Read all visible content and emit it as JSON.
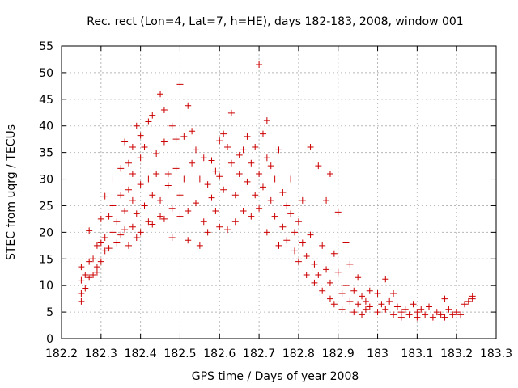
{
  "chart_data": {
    "type": "scatter",
    "title": "Rec. rect (Lon=4, Lat=7, h=HE), days 182-183, 2008, window 001",
    "xlabel": "GPS time / Days of year 2008",
    "ylabel": "STEC from uqrg / TECUs",
    "xlim": [
      182.2,
      183.3
    ],
    "ylim": [
      0,
      55
    ],
    "x_ticks": [
      182.2,
      182.3,
      182.4,
      182.5,
      182.6,
      182.7,
      182.8,
      182.9,
      183.0,
      183.1,
      183.2,
      183.3
    ],
    "x_tick_labels": [
      "182.2",
      "182.3",
      "182.4",
      "182.5",
      "182.6",
      "182.7",
      "182.8",
      "182.9",
      "183",
      "183.1",
      "183.2",
      "183.3"
    ],
    "y_ticks": [
      0,
      5,
      10,
      15,
      20,
      25,
      30,
      35,
      40,
      45,
      50,
      55
    ],
    "y_tick_labels": [
      "0",
      "5",
      "10",
      "15",
      "20",
      "25",
      "30",
      "35",
      "40",
      "45",
      "50",
      "55"
    ],
    "grid": true,
    "marker": "+",
    "color": "#cc0000",
    "series": [
      {
        "points": [
          [
            182.25,
            8.5
          ],
          [
            182.25,
            11
          ],
          [
            182.25,
            13.5
          ],
          [
            182.25,
            7
          ],
          [
            182.26,
            12
          ],
          [
            182.26,
            9.5
          ],
          [
            182.27,
            14.5
          ],
          [
            182.27,
            11.5
          ],
          [
            182.27,
            20.3
          ],
          [
            182.28,
            12
          ],
          [
            182.28,
            15
          ],
          [
            182.29,
            13.5
          ],
          [
            182.29,
            17.5
          ],
          [
            182.29,
            12.5
          ],
          [
            182.3,
            18
          ],
          [
            182.3,
            22.5
          ],
          [
            182.3,
            14.5
          ],
          [
            182.31,
            16.5
          ],
          [
            182.31,
            26.8
          ],
          [
            182.31,
            19
          ],
          [
            182.32,
            23
          ],
          [
            182.32,
            17
          ],
          [
            182.33,
            20
          ],
          [
            182.33,
            25
          ],
          [
            182.33,
            30
          ],
          [
            182.34,
            18
          ],
          [
            182.34,
            22
          ],
          [
            182.35,
            27
          ],
          [
            182.35,
            32
          ],
          [
            182.35,
            19.5
          ],
          [
            182.36,
            24
          ],
          [
            182.36,
            37
          ],
          [
            182.36,
            20.5
          ],
          [
            182.37,
            28
          ],
          [
            182.37,
            33
          ],
          [
            182.37,
            17.5
          ],
          [
            182.38,
            21
          ],
          [
            182.38,
            26
          ],
          [
            182.38,
            31
          ],
          [
            182.38,
            36
          ],
          [
            182.39,
            40
          ],
          [
            182.39,
            19
          ],
          [
            182.39,
            23.5
          ],
          [
            182.4,
            29
          ],
          [
            182.4,
            34
          ],
          [
            182.4,
            38.2
          ],
          [
            182.4,
            20
          ],
          [
            182.41,
            25
          ],
          [
            182.41,
            36
          ],
          [
            182.42,
            40.8
          ],
          [
            182.42,
            22
          ],
          [
            182.42,
            30
          ],
          [
            182.43,
            42
          ],
          [
            182.43,
            21.5
          ],
          [
            182.43,
            27
          ],
          [
            182.44,
            34.8
          ],
          [
            182.44,
            31
          ],
          [
            182.45,
            46
          ],
          [
            182.45,
            23
          ],
          [
            182.45,
            26
          ],
          [
            182.46,
            37
          ],
          [
            182.46,
            43
          ],
          [
            182.46,
            22.5
          ],
          [
            182.47,
            31
          ],
          [
            182.47,
            28.8
          ],
          [
            182.48,
            40
          ],
          [
            182.48,
            19
          ],
          [
            182.48,
            24.5
          ],
          [
            182.49,
            32
          ],
          [
            182.49,
            37.5
          ],
          [
            182.5,
            47.8
          ],
          [
            182.5,
            23
          ],
          [
            182.5,
            27
          ],
          [
            182.51,
            38
          ],
          [
            182.51,
            30
          ],
          [
            182.52,
            43.8
          ],
          [
            182.52,
            18.5
          ],
          [
            182.52,
            24
          ],
          [
            182.53,
            33
          ],
          [
            182.53,
            39
          ],
          [
            182.54,
            25.5
          ],
          [
            182.54,
            35.5
          ],
          [
            182.55,
            17.5
          ],
          [
            182.55,
            30
          ],
          [
            182.56,
            34
          ],
          [
            182.56,
            22
          ],
          [
            182.57,
            29
          ],
          [
            182.57,
            20
          ],
          [
            182.58,
            26.5
          ],
          [
            182.58,
            33.5
          ],
          [
            182.59,
            31.5
          ],
          [
            182.59,
            24
          ],
          [
            182.6,
            37.2
          ],
          [
            182.6,
            21
          ],
          [
            182.6,
            30.5
          ],
          [
            182.61,
            38.5
          ],
          [
            182.61,
            28
          ],
          [
            182.62,
            36
          ],
          [
            182.62,
            20.5
          ],
          [
            182.63,
            42.4
          ],
          [
            182.63,
            33
          ],
          [
            182.64,
            27
          ],
          [
            182.64,
            22
          ],
          [
            182.65,
            34.5
          ],
          [
            182.65,
            31
          ],
          [
            182.66,
            35.5
          ],
          [
            182.66,
            24
          ],
          [
            182.67,
            29.5
          ],
          [
            182.67,
            38
          ],
          [
            182.68,
            33
          ],
          [
            182.68,
            23
          ],
          [
            182.69,
            27
          ],
          [
            182.69,
            36
          ],
          [
            182.7,
            51.5
          ],
          [
            182.7,
            31
          ],
          [
            182.7,
            24.5
          ],
          [
            182.71,
            38.5
          ],
          [
            182.71,
            28.5
          ],
          [
            182.72,
            41
          ],
          [
            182.72,
            34
          ],
          [
            182.72,
            20
          ],
          [
            182.73,
            26
          ],
          [
            182.73,
            32.5
          ],
          [
            182.74,
            23
          ],
          [
            182.74,
            30
          ],
          [
            182.75,
            35.5
          ],
          [
            182.75,
            17.5
          ],
          [
            182.76,
            21
          ],
          [
            182.76,
            27.5
          ],
          [
            182.77,
            25
          ],
          [
            182.77,
            18.5
          ],
          [
            182.78,
            23.5
          ],
          [
            182.78,
            30
          ],
          [
            182.79,
            20
          ],
          [
            182.79,
            16.5
          ],
          [
            182.8,
            22
          ],
          [
            182.8,
            14.5
          ],
          [
            182.81,
            26
          ],
          [
            182.81,
            18
          ],
          [
            182.82,
            12
          ],
          [
            182.82,
            15.5
          ],
          [
            182.83,
            36
          ],
          [
            182.83,
            19.5
          ],
          [
            182.84,
            10.5
          ],
          [
            182.84,
            14
          ],
          [
            182.85,
            32.5
          ],
          [
            182.85,
            12
          ],
          [
            182.86,
            17.5
          ],
          [
            182.86,
            9
          ],
          [
            182.87,
            26
          ],
          [
            182.87,
            13
          ],
          [
            182.88,
            31
          ],
          [
            182.88,
            7.5
          ],
          [
            182.88,
            10.5
          ],
          [
            182.89,
            16
          ],
          [
            182.89,
            6.5
          ],
          [
            182.9,
            12.5
          ],
          [
            182.9,
            23.8
          ],
          [
            182.91,
            8.5
          ],
          [
            182.91,
            5.5
          ],
          [
            182.92,
            18
          ],
          [
            182.92,
            10
          ],
          [
            182.93,
            7
          ],
          [
            182.93,
            14
          ],
          [
            182.94,
            5
          ],
          [
            182.94,
            9
          ],
          [
            182.95,
            11.5
          ],
          [
            182.95,
            6.5
          ],
          [
            182.96,
            8
          ],
          [
            182.96,
            4.5
          ],
          [
            182.97,
            7
          ],
          [
            182.97,
            5.5
          ],
          [
            182.98,
            9
          ],
          [
            182.98,
            6
          ],
          [
            183.0,
            8.5
          ],
          [
            183.0,
            5
          ],
          [
            183.01,
            6.5
          ],
          [
            183.02,
            11.2
          ],
          [
            183.02,
            5.5
          ],
          [
            183.03,
            7
          ],
          [
            183.04,
            4.5
          ],
          [
            183.04,
            8.5
          ],
          [
            183.05,
            6
          ],
          [
            183.06,
            5
          ],
          [
            183.06,
            4
          ],
          [
            183.07,
            5.5
          ],
          [
            183.08,
            4.5
          ],
          [
            183.09,
            6.5
          ],
          [
            183.1,
            5
          ],
          [
            183.1,
            4
          ],
          [
            183.11,
            5.5
          ],
          [
            183.12,
            4.5
          ],
          [
            183.13,
            6
          ],
          [
            183.14,
            4
          ],
          [
            183.15,
            5
          ],
          [
            183.16,
            4.5
          ],
          [
            183.17,
            7.5
          ],
          [
            183.17,
            4
          ],
          [
            183.18,
            5.5
          ],
          [
            183.19,
            4.5
          ],
          [
            183.2,
            5
          ],
          [
            183.21,
            4.5
          ],
          [
            183.22,
            6.5
          ],
          [
            183.23,
            7
          ],
          [
            183.24,
            8
          ],
          [
            183.24,
            7.5
          ]
        ]
      }
    ]
  }
}
